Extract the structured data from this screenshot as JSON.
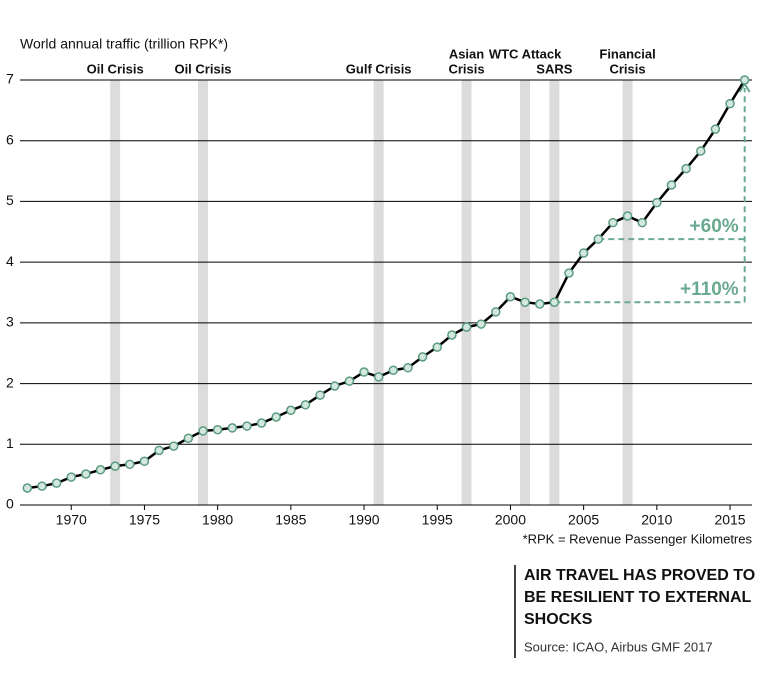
{
  "chart_data": {
    "type": "line",
    "ylabel": "World annual traffic (trillion RPK*)",
    "x": [
      1967,
      1968,
      1969,
      1970,
      1971,
      1972,
      1973,
      1974,
      1975,
      1976,
      1977,
      1978,
      1979,
      1980,
      1981,
      1982,
      1983,
      1984,
      1985,
      1986,
      1987,
      1988,
      1989,
      1990,
      1991,
      1992,
      1993,
      1994,
      1995,
      1996,
      1997,
      1998,
      1999,
      2000,
      2001,
      2002,
      2003,
      2004,
      2005,
      2006,
      2007,
      2008,
      2009,
      2010,
      2011,
      2012,
      2013,
      2014,
      2015,
      2016
    ],
    "values": [
      0.28,
      0.31,
      0.36,
      0.46,
      0.51,
      0.58,
      0.64,
      0.67,
      0.72,
      0.9,
      0.97,
      1.1,
      1.22,
      1.24,
      1.27,
      1.3,
      1.35,
      1.45,
      1.56,
      1.65,
      1.81,
      1.96,
      2.04,
      2.19,
      2.11,
      2.22,
      2.26,
      2.44,
      2.6,
      2.8,
      2.93,
      2.98,
      3.18,
      3.43,
      3.34,
      3.31,
      3.34,
      3.82,
      4.15,
      4.38,
      4.65,
      4.76,
      4.65,
      4.98,
      5.27,
      5.54,
      5.83,
      6.19,
      6.61,
      7.0
    ],
    "xlim": [
      1966.5,
      2016.5
    ],
    "xticks": [
      1970,
      1975,
      1980,
      1985,
      1990,
      1995,
      2000,
      2005,
      2010,
      2015
    ],
    "ylim": [
      0,
      7
    ],
    "yticks": [
      0,
      1,
      2,
      3,
      4,
      5,
      6,
      7
    ],
    "grid": true,
    "color": "#000000",
    "marker_color": "#5a9a80",
    "events": [
      {
        "x": 1973,
        "label": [
          "Oil Crisis"
        ]
      },
      {
        "x": 1979,
        "label": [
          "Oil Crisis"
        ]
      },
      {
        "x": 1991,
        "label": [
          "Gulf Crisis"
        ]
      },
      {
        "x": 1997,
        "label": [
          "Asian",
          "Crisis"
        ]
      },
      {
        "x": 2001,
        "label": [
          "WTC Attack"
        ]
      },
      {
        "x": 2003,
        "label": [
          "SARS"
        ]
      },
      {
        "x": 2008,
        "label": [
          "Financial",
          "Crisis"
        ]
      }
    ],
    "growth": [
      {
        "from": 2006,
        "label": "+60%"
      },
      {
        "from": 2003,
        "label": "+110%"
      }
    ],
    "growth_color": "#6aaa90",
    "footnote": "*RPK = Revenue Passenger Kilometres",
    "title": [
      "AIR TRAVEL HAS PROVED TO",
      "BE RESILIENT TO EXTERNAL",
      "SHOCKS"
    ],
    "source": "Source: ICAO, Airbus GMF 2017"
  }
}
